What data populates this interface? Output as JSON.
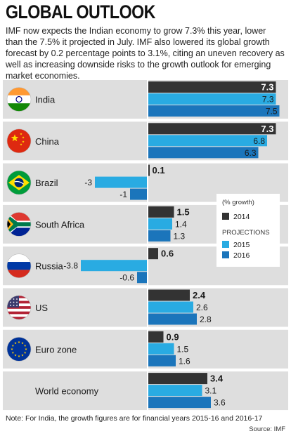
{
  "title": "GLOBAL OUTLOOK",
  "intro": "IMF now expects the Indian economy to grow 7.3% this year, lower than the 7.5% it projected in July. IMF also lowered its global growth forecast by 0.2 percentage points to 3.1%, citing an uneven recovery as well as increasing downside risks to the growth outlook for emerging market economies.",
  "note": "Note: For India, the growth figures are for financial years 2015-16 and 2016-17",
  "source": "Source: IMF",
  "colors": {
    "2014": "#333333",
    "2015": "#29abe2",
    "2016": "#1b75bb",
    "panel": "#dedede"
  },
  "legend": {
    "unit_label": "(% growth)",
    "projections_label": "PROJECTIONS",
    "items": [
      "2014",
      "2015",
      "2016"
    ]
  },
  "chart_data": {
    "type": "bar",
    "orientation": "horizontal",
    "categories": [
      "India",
      "China",
      "Brazil",
      "South Africa",
      "Russia",
      "US",
      "Euro zone",
      "World economy"
    ],
    "flags": [
      "india-flag",
      "china-flag",
      "brazil-flag",
      "south-africa-flag",
      "russia-flag",
      "us-flag",
      "eu-flag",
      null
    ],
    "series": [
      {
        "name": "2014",
        "values": [
          7.3,
          7.3,
          0.1,
          1.5,
          0.6,
          2.4,
          0.9,
          3.4
        ]
      },
      {
        "name": "2015",
        "values": [
          7.3,
          6.8,
          -3,
          1.4,
          -3.8,
          2.6,
          1.5,
          3.1
        ]
      },
      {
        "name": "2016",
        "values": [
          7.5,
          6.3,
          -1,
          1.3,
          -0.6,
          2.8,
          1.6,
          3.6
        ]
      }
    ],
    "labels": [
      [
        "7.3",
        "7.3",
        "0.1",
        "1.5",
        "0.6",
        "2.4",
        "0.9",
        "3.4"
      ],
      [
        "7.3",
        "6.8",
        "-3",
        "1.4",
        "-3.8",
        "2.6",
        "1.5",
        "3.1"
      ],
      [
        "7.5",
        "6.3",
        "-1",
        "1.3",
        "-0.6",
        "2.8",
        "1.6",
        "3.6"
      ]
    ],
    "xlim": [
      -5.5,
      7.6
    ],
    "legend_position": "middle-right"
  }
}
